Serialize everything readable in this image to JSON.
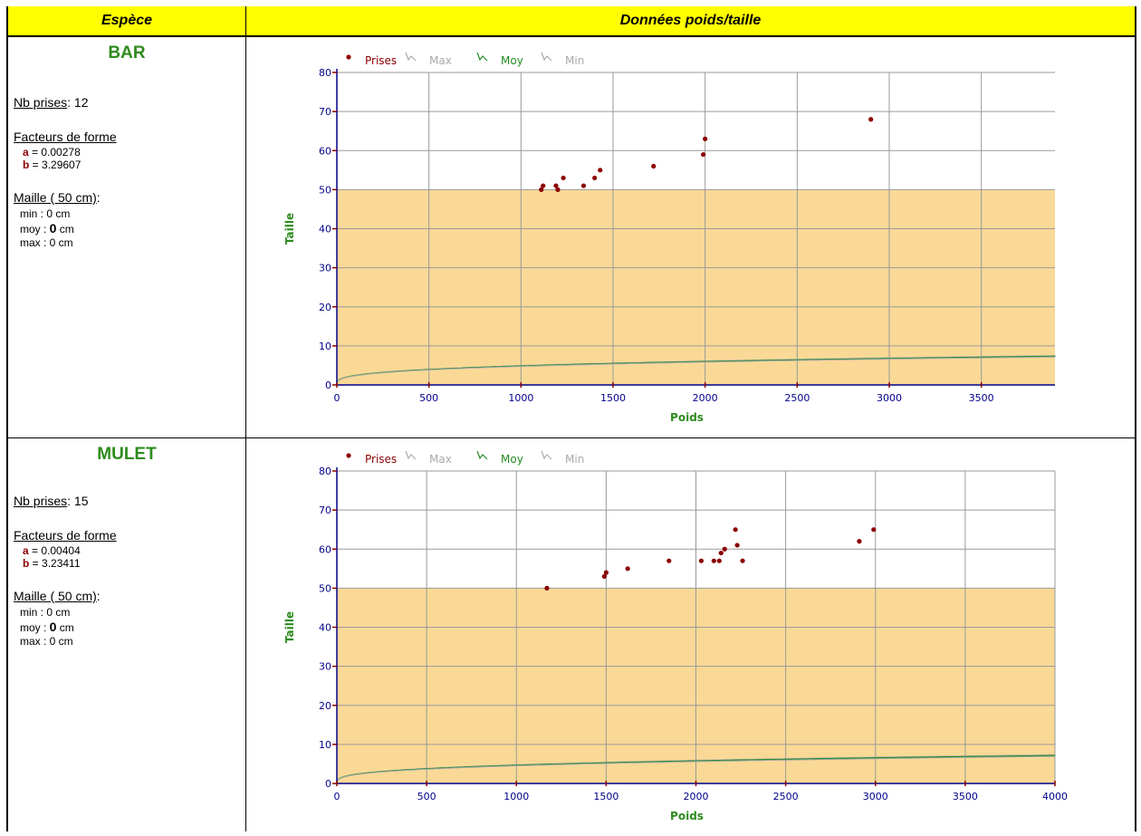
{
  "header": {
    "col_species": "Espèce",
    "col_data": "Données poids/taille"
  },
  "species": [
    {
      "name": "BAR",
      "nb_label": "Nb prises",
      "nb_value": ": 12",
      "form_label": "Facteurs de forme",
      "a_label": "a",
      "a_value": " = 0.00278",
      "b_label": "b",
      "b_value": " = 3.29607",
      "maille_label": "Maille ( 50 cm)",
      "maille_colon": ":",
      "min_text": "min  : 0 cm",
      "moy_label": "moy : ",
      "moy_value": "0",
      "moy_unit": " cm",
      "max_text": "max : 0 cm"
    },
    {
      "name": "MULET",
      "nb_label": "Nb prises",
      "nb_value": ": 15",
      "form_label": "Facteurs de forme",
      "a_label": "a",
      "a_value": " = 0.00404",
      "b_label": "b",
      "b_value": " = 3.23411",
      "maille_label": "Maille ( 50 cm)",
      "maille_colon": ":",
      "min_text": "min  : 0 cm",
      "moy_label": "moy : ",
      "moy_value": "0",
      "moy_unit": " cm",
      "max_text": "max : 0 cm"
    }
  ],
  "colors": {
    "header_bg": "#ffff00",
    "species_title": "#2e8b1e",
    "shade": "#fad996",
    "moy": "#228b22",
    "envelope": "#a9a9a9",
    "points": "#8b0000",
    "axis": "#00008b",
    "axis_title": "#2e8b1e"
  },
  "chart_data": [
    {
      "type": "scatter",
      "xlabel": "Poids",
      "ylabel": "Taille",
      "xlim": [
        0,
        3900
      ],
      "ylim": [
        0,
        80
      ],
      "xticks": [
        "0",
        "500",
        "1000",
        "1500",
        "2000",
        "2500",
        "3000",
        "3500"
      ],
      "yticks": [
        "0",
        "10",
        "20",
        "30",
        "40",
        "50",
        "60",
        "70",
        "80"
      ],
      "grid": true,
      "legend_position": "top-left",
      "shaded_band": [
        0,
        50
      ],
      "legend": [
        "Prises",
        "Max",
        "Moy",
        "Min"
      ],
      "series": [
        {
          "name": "Prises",
          "kind": "points",
          "points": [
            [
              1110,
              50
            ],
            [
              1120,
              51
            ],
            [
              1190,
              51
            ],
            [
              1200,
              50
            ],
            [
              1230,
              53
            ],
            [
              1340,
              51
            ],
            [
              1400,
              53
            ],
            [
              1430,
              55
            ],
            [
              1720,
              56
            ],
            [
              1990,
              59
            ],
            [
              2000,
              63
            ],
            [
              2900,
              68
            ]
          ]
        },
        {
          "name": "Max",
          "kind": "curve",
          "scale": 1.025,
          "a": 0.00278,
          "b": 3.29607
        },
        {
          "name": "Moy",
          "kind": "curve",
          "scale": 1.0,
          "a": 0.00278,
          "b": 3.29607
        },
        {
          "name": "Min",
          "kind": "curve",
          "scale": 0.977,
          "a": 0.00278,
          "b": 3.29607
        }
      ]
    },
    {
      "type": "scatter",
      "xlabel": "Poids",
      "ylabel": "Taille",
      "xlim": [
        0,
        4000
      ],
      "ylim": [
        0,
        80
      ],
      "xticks": [
        "0",
        "500",
        "1000",
        "1500",
        "2000",
        "2500",
        "3000",
        "3500",
        "4000"
      ],
      "yticks": [
        "0",
        "10",
        "20",
        "30",
        "40",
        "50",
        "60",
        "70",
        "80"
      ],
      "grid": true,
      "legend_position": "top-left",
      "shaded_band": [
        0,
        50
      ],
      "legend": [
        "Prises",
        "Max",
        "Moy",
        "Min"
      ],
      "series": [
        {
          "name": "Prises",
          "kind": "points",
          "points": [
            [
              1170,
              50
            ],
            [
              1490,
              53
            ],
            [
              1500,
              54
            ],
            [
              1620,
              55
            ],
            [
              1850,
              57
            ],
            [
              2030,
              57
            ],
            [
              2100,
              57
            ],
            [
              2130,
              57
            ],
            [
              2140,
              59
            ],
            [
              2160,
              60
            ],
            [
              2220,
              65
            ],
            [
              2230,
              61
            ],
            [
              2260,
              57
            ],
            [
              2910,
              62
            ],
            [
              2990,
              65
            ]
          ]
        },
        {
          "name": "Max",
          "kind": "curve",
          "scale": 1.03,
          "a": 0.00404,
          "b": 3.23411
        },
        {
          "name": "Moy",
          "kind": "curve",
          "scale": 1.0,
          "a": 0.00404,
          "b": 3.23411
        },
        {
          "name": "Min",
          "kind": "curve",
          "scale": 0.97,
          "a": 0.00404,
          "b": 3.23411
        }
      ]
    }
  ]
}
